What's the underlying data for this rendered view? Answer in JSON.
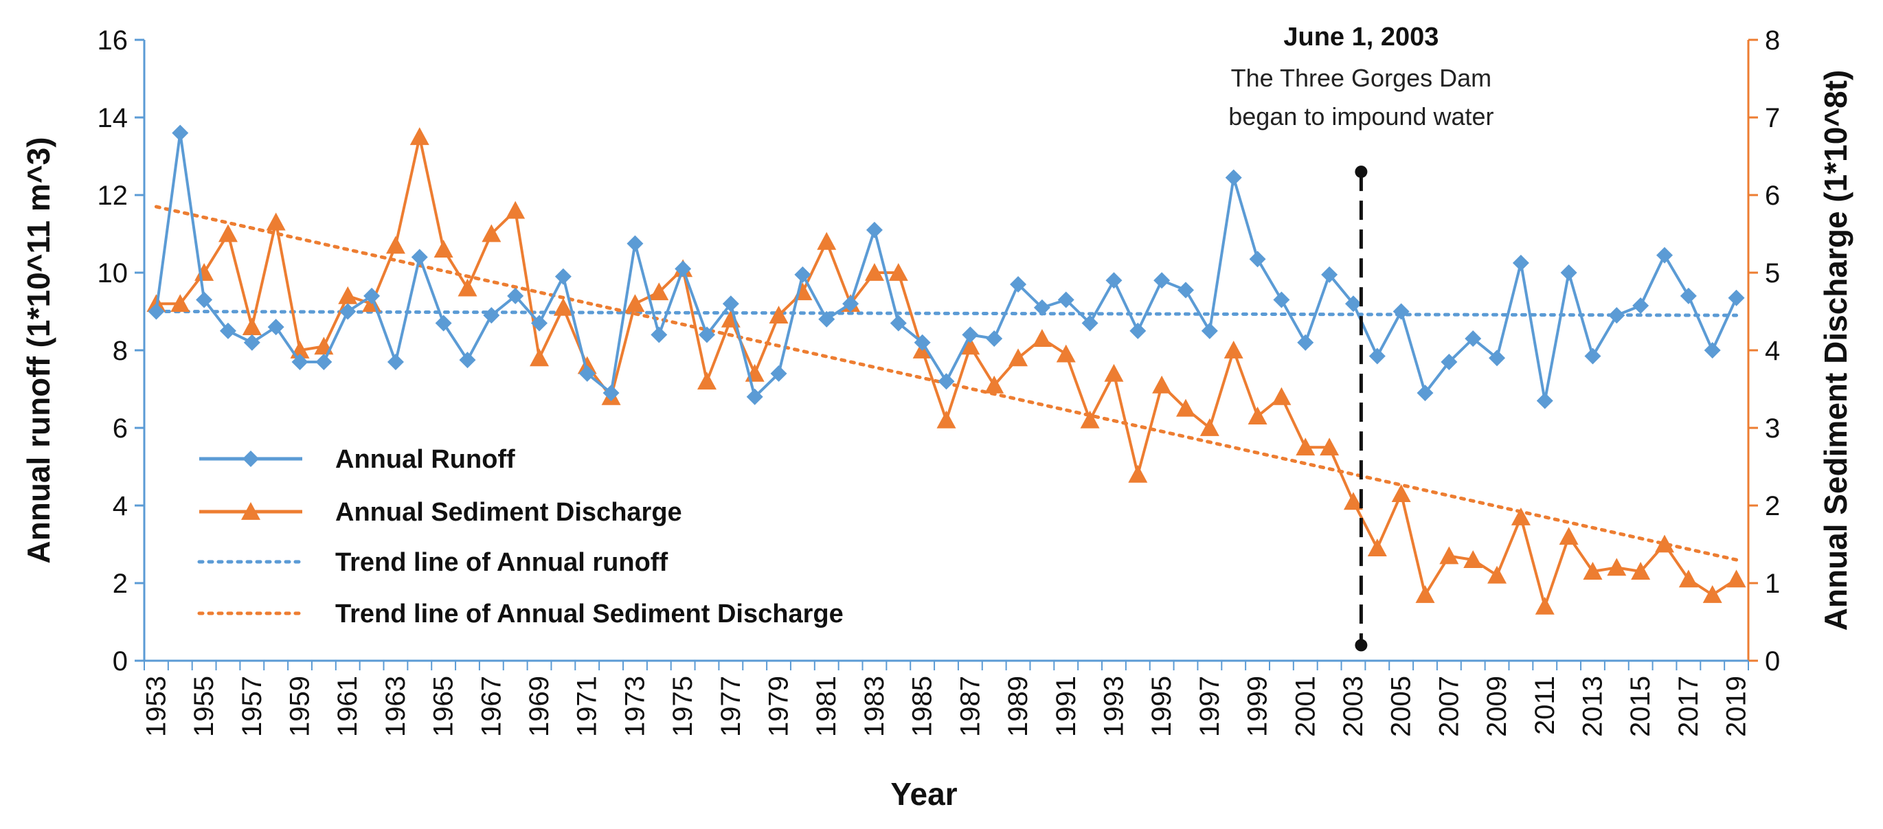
{
  "chart_data": {
    "type": "line",
    "x": [
      1953,
      1954,
      1955,
      1956,
      1957,
      1958,
      1959,
      1960,
      1961,
      1962,
      1963,
      1964,
      1965,
      1966,
      1967,
      1968,
      1969,
      1970,
      1971,
      1972,
      1973,
      1974,
      1975,
      1976,
      1977,
      1978,
      1979,
      1980,
      1981,
      1982,
      1983,
      1984,
      1985,
      1986,
      1987,
      1988,
      1989,
      1990,
      1991,
      1992,
      1993,
      1994,
      1995,
      1996,
      1997,
      1998,
      1999,
      2000,
      2001,
      2002,
      2003,
      2004,
      2005,
      2006,
      2007,
      2008,
      2009,
      2010,
      2011,
      2012,
      2013,
      2014,
      2015,
      2016,
      2017,
      2018,
      2019
    ],
    "x_tick_labels": [
      "1953",
      "1955",
      "1957",
      "1959",
      "1961",
      "1963",
      "1965",
      "1967",
      "1969",
      "1971",
      "1973",
      "1975",
      "1977",
      "1979",
      "1981",
      "1983",
      "1985",
      "1987",
      "1989",
      "1991",
      "1993",
      "1995",
      "1997",
      "1999",
      "2001",
      "2003",
      "2005",
      "2007",
      "2009",
      "2011",
      "2013",
      "2015",
      "2017",
      "2019"
    ],
    "xlabel": "Year",
    "ylabel": "Annual runoff (1*10^11 m^3)",
    "y2label": "Annual Sediment Discharge (1*10^8t)",
    "ylim": [
      0,
      16
    ],
    "y2lim": [
      0,
      8
    ],
    "y_ticks": [
      "0",
      "2",
      "4",
      "6",
      "8",
      "10",
      "12",
      "14",
      "16"
    ],
    "y2_ticks": [
      "0",
      "1",
      "2",
      "3",
      "4",
      "5",
      "6",
      "7",
      "8"
    ],
    "series": [
      {
        "name": "Annual Runoff",
        "axis": "left",
        "color": "#5b9bd5",
        "marker": "diamond",
        "values": [
          9.0,
          13.6,
          9.3,
          8.5,
          8.2,
          8.6,
          7.7,
          7.7,
          9.0,
          9.4,
          7.7,
          10.4,
          8.7,
          7.75,
          8.9,
          9.4,
          8.7,
          9.9,
          7.4,
          6.9,
          10.75,
          8.4,
          10.1,
          8.4,
          9.2,
          6.8,
          7.4,
          9.95,
          8.8,
          9.2,
          11.1,
          8.7,
          8.2,
          7.2,
          8.4,
          8.3,
          9.7,
          9.1,
          9.3,
          8.7,
          9.8,
          8.5,
          9.8,
          9.55,
          8.5,
          12.45,
          10.35,
          9.3,
          8.2,
          9.95,
          9.2,
          7.85,
          9.0,
          6.9,
          7.7,
          8.3,
          7.8,
          10.25,
          6.7,
          10.0,
          7.85,
          8.9,
          9.15,
          10.45,
          9.4,
          8.0,
          9.35
        ]
      },
      {
        "name": "Annual Sediment Discharge",
        "axis": "right",
        "color": "#ed7d31",
        "marker": "triangle",
        "values": [
          4.6,
          4.6,
          5.0,
          5.5,
          4.3,
          5.65,
          4.0,
          4.05,
          4.7,
          4.6,
          5.35,
          6.75,
          5.3,
          4.8,
          5.5,
          5.8,
          3.9,
          4.55,
          3.8,
          3.4,
          4.6,
          4.75,
          5.05,
          3.6,
          4.4,
          3.7,
          4.45,
          4.75,
          5.4,
          4.6,
          5.0,
          5.0,
          4.0,
          3.1,
          4.05,
          3.55,
          3.9,
          4.15,
          3.95,
          3.1,
          3.7,
          2.4,
          3.55,
          3.25,
          3.0,
          4.0,
          3.15,
          3.4,
          2.75,
          2.75,
          2.05,
          1.45,
          2.15,
          0.85,
          1.35,
          1.3,
          1.1,
          1.85,
          0.7,
          1.6,
          1.15,
          1.2,
          1.15,
          1.5,
          1.05,
          0.85,
          1.05
        ]
      }
    ],
    "trend_lines": [
      {
        "name": "Trend line of Annual runoff",
        "axis": "left",
        "color": "#5b9bd5",
        "start": [
          1953,
          9.0
        ],
        "end": [
          2019,
          8.9
        ]
      },
      {
        "name": "Trend line of Annual Sediment Discharge",
        "axis": "right",
        "color": "#ed7d31",
        "start": [
          1953,
          5.85
        ],
        "end": [
          2019,
          1.3
        ]
      }
    ],
    "legend": {
      "placement": "bottom-left",
      "items": [
        "Annual Runoff",
        "Annual Sediment Discharge",
        "Trend line of Annual runoff",
        "Trend line of Annual Sediment Discharge"
      ]
    },
    "annotation": {
      "year": 2003.5,
      "from_value": 0.4,
      "to_value": 12.6,
      "title": "June 1, 2003",
      "line1": "The Three Gorges Dam",
      "line2": "began to impound water"
    }
  }
}
